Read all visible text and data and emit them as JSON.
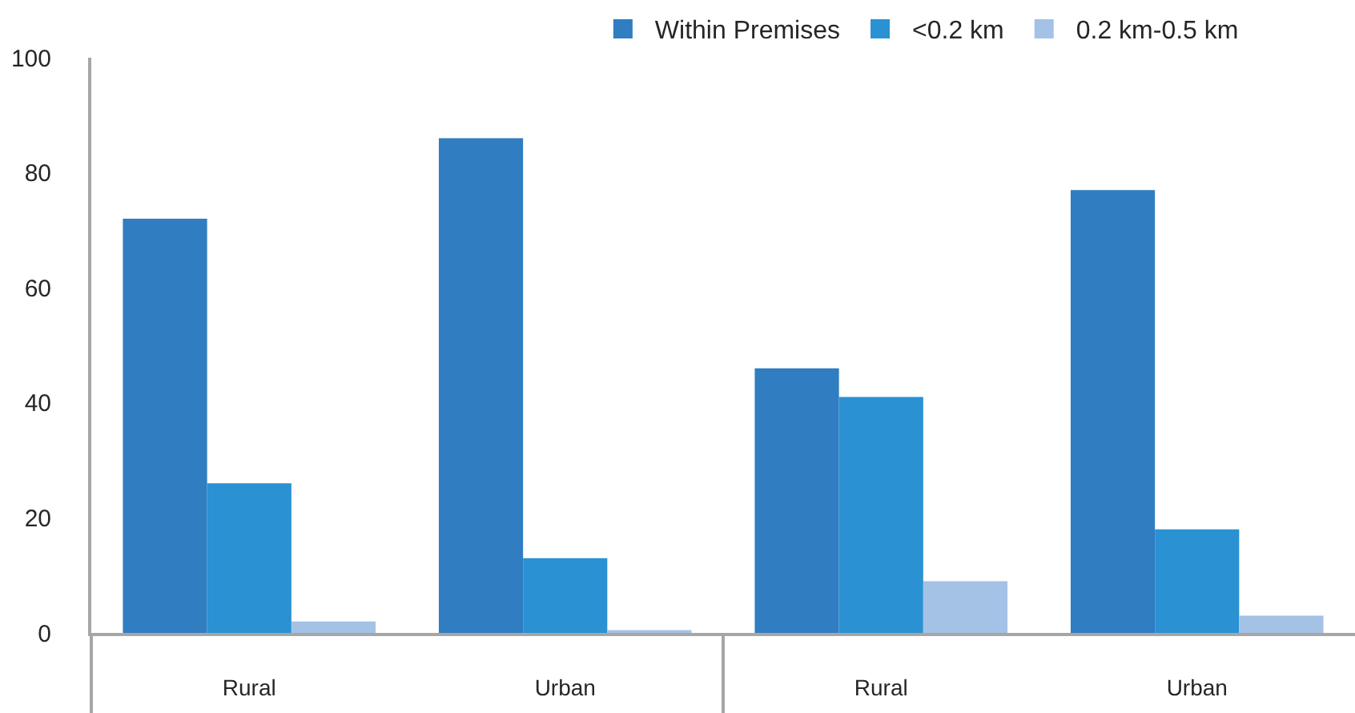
{
  "chart_data": {
    "type": "bar",
    "categories": [
      "Rural",
      "Urban",
      "Rural",
      "Urban"
    ],
    "series": [
      {
        "name": "Within Premises",
        "color": "#307dc1",
        "values": [
          72,
          86,
          46,
          77
        ]
      },
      {
        "name": "<0.2 km",
        "color": "#2a91d3",
        "values": [
          26,
          13,
          41,
          18
        ]
      },
      {
        "name": "0.2 km-0.5 km",
        "color": "#a3c2e6",
        "values": [
          2,
          0.5,
          9,
          3
        ]
      }
    ],
    "ylim": [
      0,
      100
    ],
    "yticks": [
      0,
      20,
      40,
      60,
      80,
      100
    ],
    "legend": "top right"
  }
}
